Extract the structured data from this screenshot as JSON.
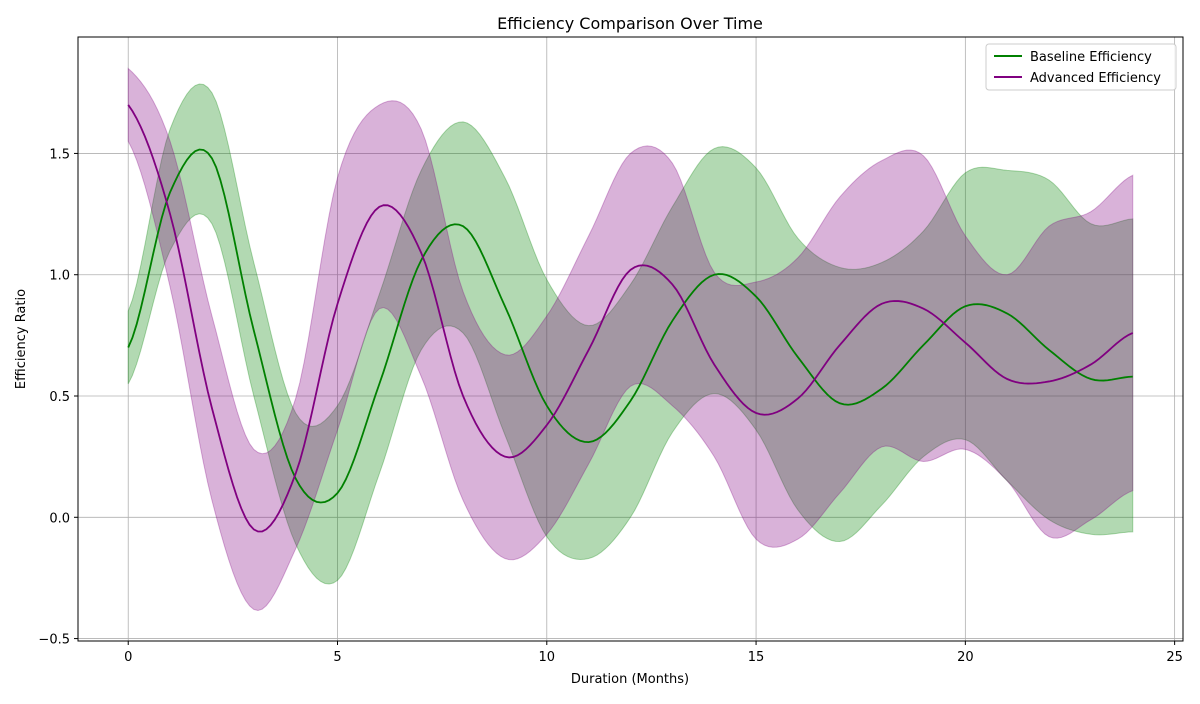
{
  "chart_data": {
    "type": "line",
    "title": "Efficiency Comparison Over Time",
    "xlabel": "Duration (Months)",
    "ylabel": "Efficiency Ratio",
    "xlim": [
      -1.2,
      25.2
    ],
    "ylim": [
      -0.51,
      1.98
    ],
    "x_ticks": [
      0,
      5,
      10,
      15,
      20,
      25
    ],
    "x_tick_labels": [
      "0",
      "5",
      "10",
      "15",
      "20",
      "25"
    ],
    "y_ticks": [
      -0.5,
      0.0,
      0.5,
      1.0,
      1.5
    ],
    "y_tick_labels": [
      "−0.5",
      "0.0",
      "0.5",
      "1.0",
      "1.5"
    ],
    "grid": true,
    "legend_position": "top-right",
    "x": [
      0,
      1,
      2,
      3,
      4,
      5,
      6,
      7,
      8,
      9,
      10,
      11,
      12,
      13,
      14,
      15,
      16,
      17,
      18,
      19,
      20,
      21,
      22,
      23,
      24
    ],
    "series": [
      {
        "name": "Baseline Efficiency",
        "color": "#008000",
        "band_color": "#008000",
        "values": [
          0.7,
          1.34,
          1.48,
          0.77,
          0.16,
          0.1,
          0.55,
          1.06,
          1.2,
          0.87,
          0.46,
          0.31,
          0.48,
          0.81,
          1.0,
          0.91,
          0.66,
          0.47,
          0.53,
          0.71,
          0.87,
          0.84,
          0.69,
          0.57,
          0.58
        ],
        "lower": [
          0.55,
          1.1,
          1.21,
          0.5,
          -0.11,
          -0.26,
          0.18,
          0.69,
          0.76,
          0.34,
          -0.08,
          -0.17,
          0.0,
          0.35,
          0.51,
          0.36,
          0.03,
          -0.1,
          0.05,
          0.25,
          0.32,
          0.15,
          -0.01,
          -0.07,
          -0.06
        ],
        "upper": [
          0.85,
          1.6,
          1.75,
          1.05,
          0.43,
          0.46,
          0.92,
          1.43,
          1.63,
          1.4,
          0.98,
          0.79,
          0.96,
          1.28,
          1.52,
          1.44,
          1.15,
          1.03,
          1.05,
          1.18,
          1.42,
          1.43,
          1.39,
          1.21,
          1.23
        ]
      },
      {
        "name": "Advanced Efficiency",
        "color": "#800080",
        "band_color": "#800080",
        "values": [
          1.7,
          1.25,
          0.45,
          -0.05,
          0.18,
          0.88,
          1.28,
          1.09,
          0.5,
          0.25,
          0.38,
          0.69,
          1.02,
          0.96,
          0.63,
          0.43,
          0.49,
          0.71,
          0.88,
          0.86,
          0.72,
          0.57,
          0.56,
          0.63,
          0.76
        ],
        "lower": [
          1.55,
          0.95,
          0.07,
          -0.38,
          -0.13,
          0.36,
          0.86,
          0.58,
          0.07,
          -0.17,
          -0.07,
          0.22,
          0.54,
          0.46,
          0.25,
          -0.09,
          -0.09,
          0.1,
          0.29,
          0.23,
          0.28,
          0.15,
          -0.08,
          -0.01,
          0.11
        ],
        "upper": [
          1.85,
          1.55,
          0.83,
          0.28,
          0.49,
          1.4,
          1.7,
          1.6,
          0.93,
          0.67,
          0.83,
          1.16,
          1.5,
          1.46,
          1.01,
          0.97,
          1.07,
          1.32,
          1.47,
          1.49,
          1.16,
          1.0,
          1.2,
          1.26,
          1.41
        ]
      }
    ]
  }
}
